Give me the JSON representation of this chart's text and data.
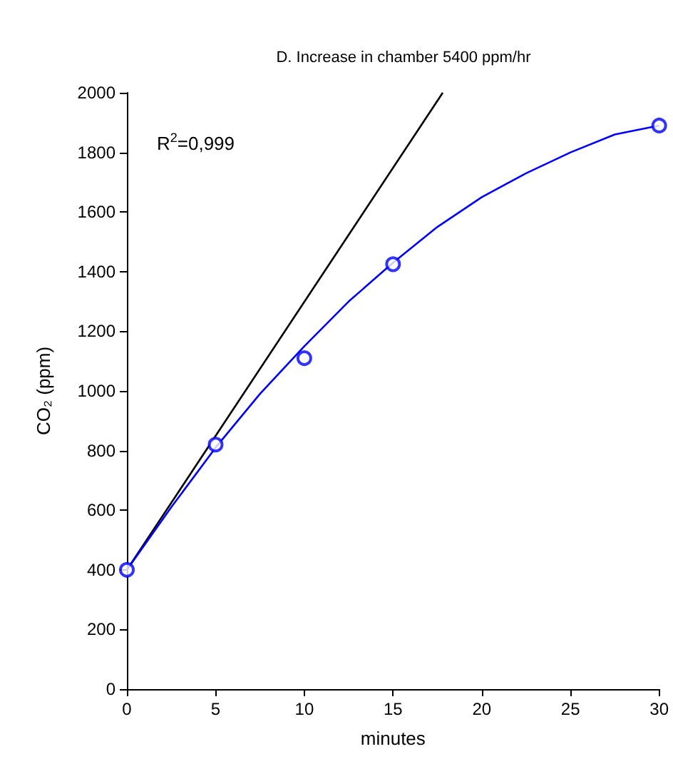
{
  "chart_data": {
    "type": "scatter",
    "title": "D. Increase in chamber 5400 ppm/hr",
    "xlabel": "minutes",
    "ylabel": "CO₂ (ppm)",
    "annotations": [
      "R$^{2}$=0,999"
    ],
    "xlim": [
      0,
      30
    ],
    "xticks": [
      0,
      5,
      10,
      15,
      20,
      25,
      30
    ],
    "ylim": [
      0,
      2000
    ],
    "yticks": [
      0,
      200,
      400,
      600,
      800,
      1000,
      1200,
      1400,
      1600,
      1800,
      2000
    ],
    "grid": false,
    "series": [
      {
        "type": "line",
        "color": "#000000",
        "marker": "none",
        "x": [
          0,
          17.8
        ],
        "values": [
          400,
          2000
        ]
      },
      {
        "type": "line",
        "color": "#0000ff",
        "marker": "none",
        "x": [
          0,
          2.5,
          5,
          7.5,
          10,
          12.5,
          15,
          17.5,
          20,
          22.5,
          25,
          27.5,
          30
        ],
        "values": [
          400,
          610,
          810,
          990,
          1150,
          1300,
          1430,
          1550,
          1650,
          1730,
          1800,
          1860,
          1890
        ]
      },
      {
        "color": "#0000ff",
        "marker": "circle",
        "x": [
          0,
          5,
          10,
          15,
          30
        ],
        "values": [
          400,
          820,
          1110,
          1425,
          1890
        ]
      }
    ]
  }
}
